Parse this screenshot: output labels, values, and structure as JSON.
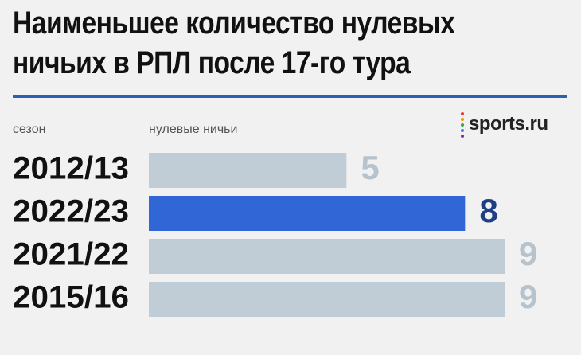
{
  "title": {
    "line1": "Наименьшее количество нулевых",
    "line2": "ничьих в РПЛ после 17-го тура"
  },
  "header": {
    "season_label": "сезон",
    "value_label": "нулевые ничьи"
  },
  "logo": {
    "text": "sports.ru"
  },
  "colors": {
    "highlight": "#3066d6",
    "bar": "#c0ccd6",
    "muted_value": "#b6c2cc",
    "highlight_value": "#1e3f85",
    "rule": "#2e5fb0"
  },
  "chart_data": {
    "type": "bar",
    "orientation": "horizontal",
    "categories": [
      "2012/13",
      "2022/23",
      "2021/22",
      "2015/16"
    ],
    "values": [
      5,
      8,
      9,
      9
    ],
    "highlight_index": 1,
    "xlim": [
      0,
      9
    ],
    "grid": false
  }
}
